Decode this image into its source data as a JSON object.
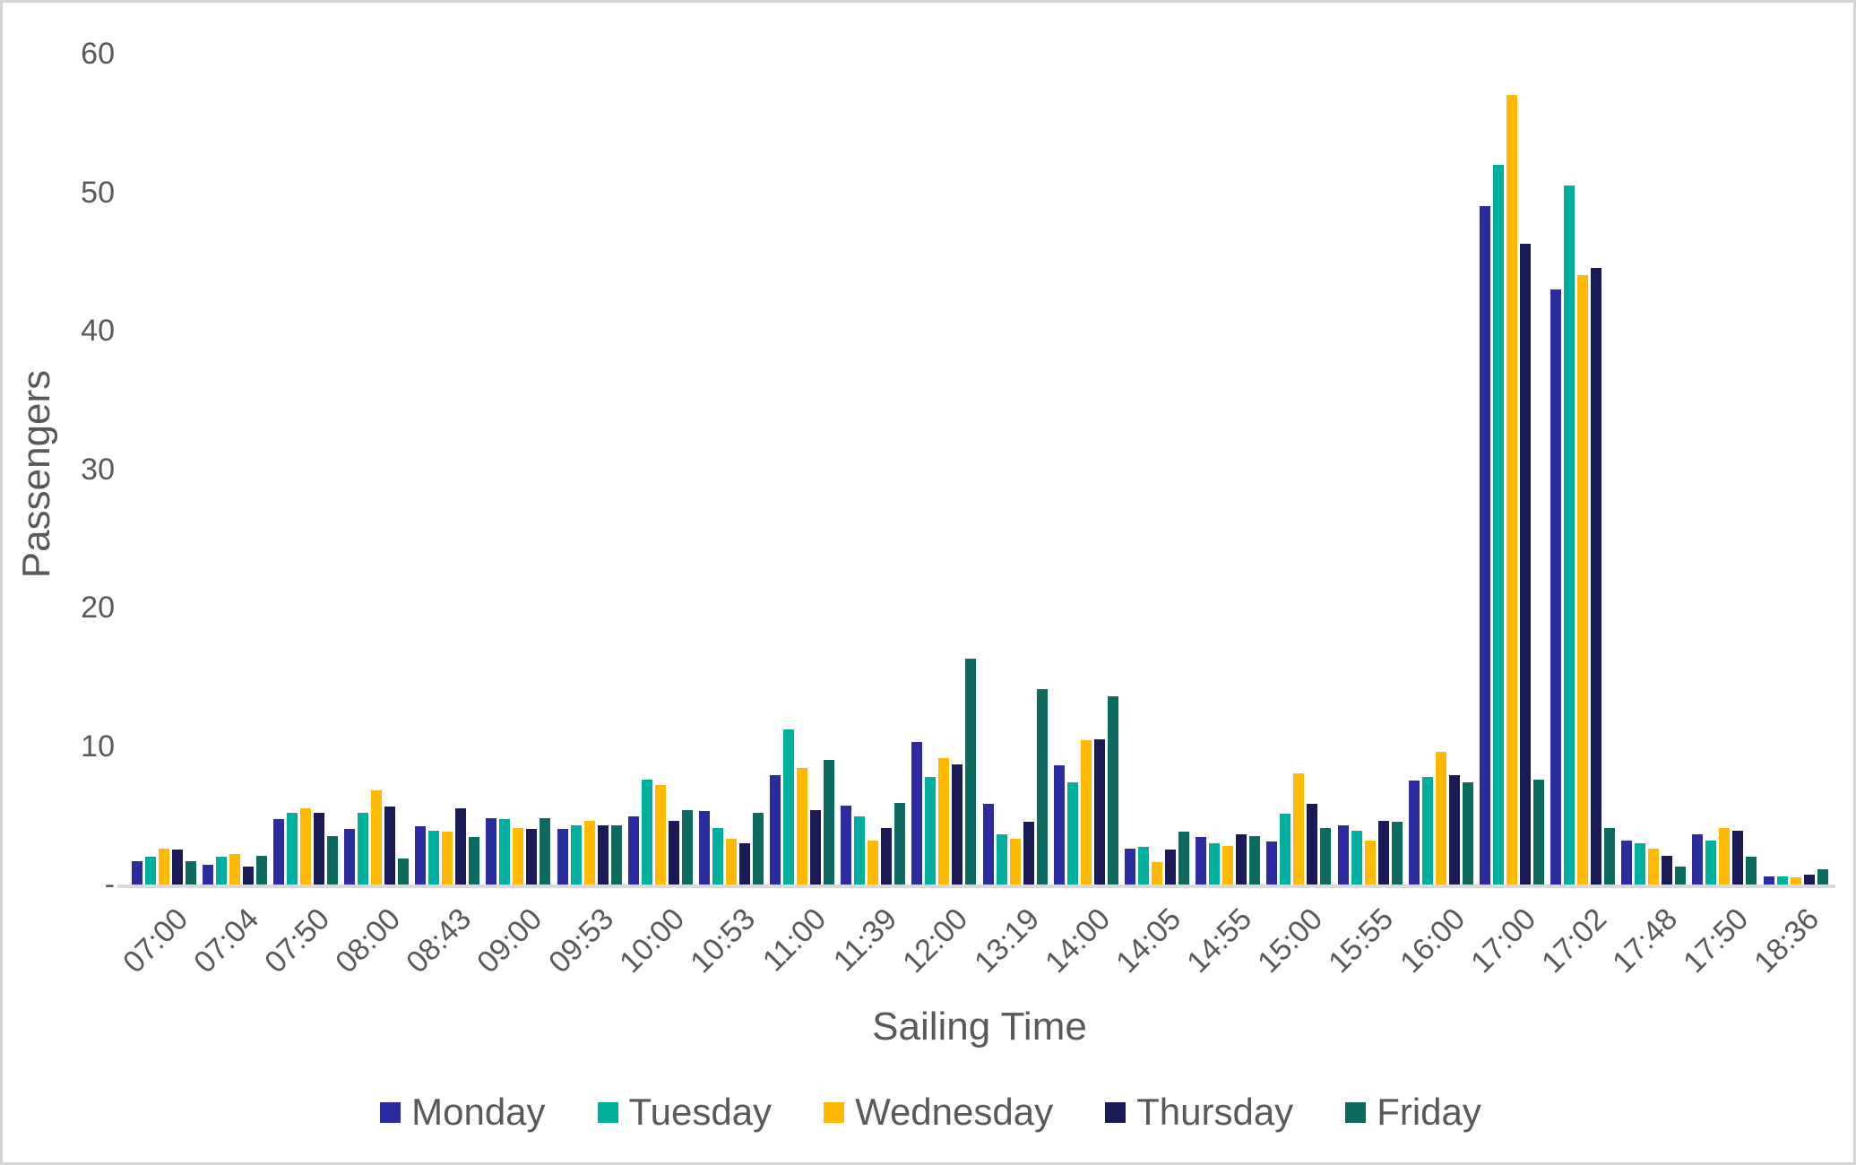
{
  "chart_data": {
    "type": "bar",
    "title": "",
    "xlabel": "Sailing Time",
    "ylabel": "Passengers",
    "ylim": [
      0,
      60
    ],
    "grid": false,
    "legend_position": "bottom",
    "axis_text_color": "#595959",
    "axis_line_color": "#D9D9D9",
    "yticks": [
      {
        "value": 60,
        "label": "60"
      },
      {
        "value": 50,
        "label": "50"
      },
      {
        "value": 40,
        "label": "40"
      },
      {
        "value": 30,
        "label": "30"
      },
      {
        "value": 20,
        "label": "20"
      },
      {
        "value": 10,
        "label": "10"
      },
      {
        "value": 0,
        "label": "-"
      }
    ],
    "categories": [
      "07:00",
      "07:04",
      "07:50",
      "08:00",
      "08:43",
      "09:00",
      "09:53",
      "10:00",
      "10:53",
      "11:00",
      "11:39",
      "12:00",
      "13:19",
      "14:00",
      "14:05",
      "14:55",
      "15:00",
      "15:55",
      "16:00",
      "17:00",
      "17:02",
      "17:48",
      "17:50",
      "18:36"
    ],
    "series": [
      {
        "name": "Monday",
        "color": "#2C2BA0",
        "values": [
          1.7,
          1.4,
          4.7,
          4.0,
          4.2,
          4.8,
          4.0,
          4.9,
          5.3,
          7.9,
          5.7,
          10.3,
          5.8,
          8.6,
          2.6,
          3.4,
          3.1,
          4.3,
          7.5,
          49.0,
          43.0,
          3.2,
          3.6,
          0.6
        ]
      },
      {
        "name": "Tuesday",
        "color": "#00AF9D",
        "values": [
          2.0,
          2.0,
          5.2,
          5.2,
          3.9,
          4.7,
          4.3,
          7.6,
          4.1,
          11.2,
          4.9,
          7.8,
          3.6,
          7.4,
          2.7,
          3.0,
          5.1,
          3.9,
          7.8,
          52.0,
          50.5,
          3.0,
          3.2,
          0.6
        ]
      },
      {
        "name": "Wednesday",
        "color": "#FFB900",
        "values": [
          2.6,
          2.2,
          5.5,
          6.8,
          3.8,
          4.1,
          4.6,
          7.2,
          3.3,
          8.4,
          3.2,
          9.1,
          3.3,
          10.4,
          1.6,
          2.8,
          8.0,
          3.2,
          9.6,
          57.0,
          44.0,
          2.6,
          4.1,
          0.5
        ]
      },
      {
        "name": "Thursday",
        "color": "#1A1A56",
        "values": [
          2.5,
          1.3,
          5.2,
          5.6,
          5.5,
          4.0,
          4.3,
          4.6,
          3.0,
          5.4,
          4.1,
          8.7,
          4.5,
          10.5,
          2.5,
          3.6,
          5.8,
          4.6,
          7.9,
          46.3,
          44.5,
          2.1,
          3.9,
          0.7
        ]
      },
      {
        "name": "Friday",
        "color": "#0C6B5E",
        "values": [
          1.7,
          2.1,
          3.5,
          1.9,
          3.4,
          4.8,
          4.3,
          5.4,
          5.2,
          9.0,
          5.9,
          16.3,
          14.1,
          13.6,
          3.8,
          3.5,
          4.1,
          4.5,
          7.4,
          7.6,
          4.1,
          1.3,
          2.0,
          1.1
        ]
      }
    ]
  }
}
